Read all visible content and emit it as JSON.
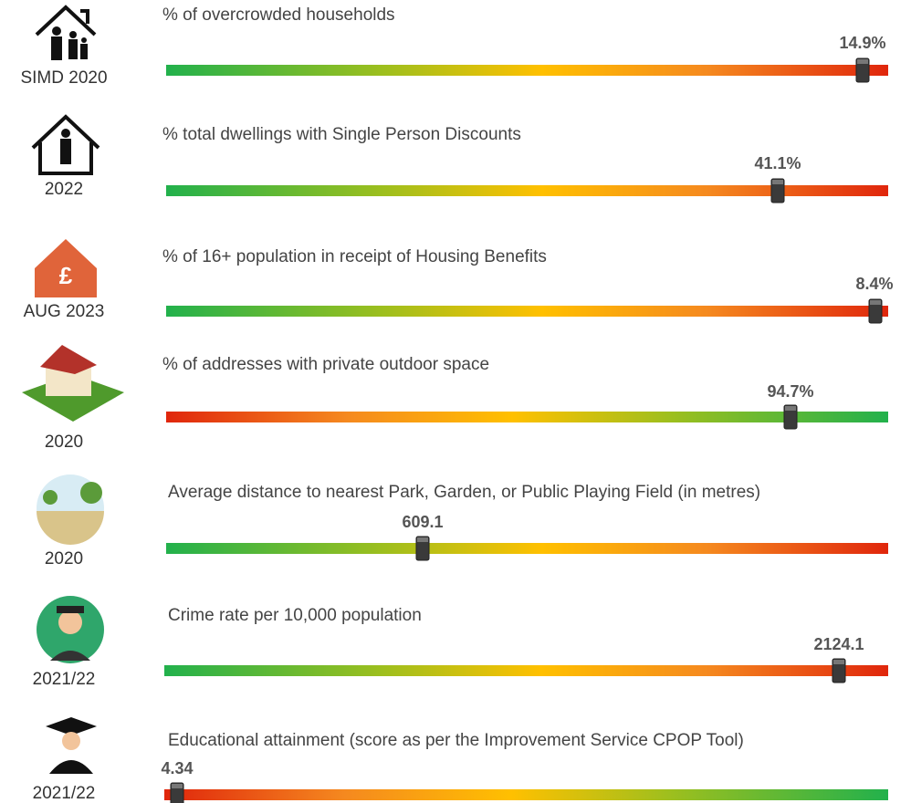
{
  "indicators": [
    {
      "year": "SIMD 2020",
      "title": "% of overcrowded households",
      "value": "14.9%"
    },
    {
      "year": "2022",
      "title": "% total dwellings with Single Person Discounts",
      "value": "41.1%"
    },
    {
      "year": "AUG 2023",
      "title": "% of 16+ population in receipt of Housing Benefits",
      "value": "8.4%"
    },
    {
      "year": "2020",
      "title": "% of addresses with private outdoor space",
      "value": "94.7%"
    },
    {
      "year": "2020",
      "title": "Average distance to nearest Park, Garden, or Public Playing Field (in metres)",
      "value": "609.1"
    },
    {
      "year": "2021/22",
      "title": "Crime rate per 10,000 population",
      "value": "2124.1"
    },
    {
      "year": "2021/22",
      "title": "Educational attainment (score as per the Improvement Service CPOP Tool)",
      "value": "4.34"
    }
  ]
}
